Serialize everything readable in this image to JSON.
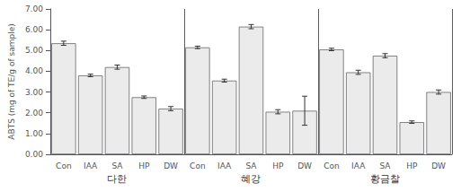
{
  "chart_data": {
    "type": "bar",
    "groups": [
      "다한",
      "혜강",
      "황금찰"
    ],
    "categories": [
      "Con",
      "IAA",
      "SA",
      "HP",
      "DW"
    ],
    "values": [
      [
        5.35,
        3.8,
        4.2,
        2.75,
        2.2
      ],
      [
        5.15,
        3.55,
        6.15,
        2.05,
        2.1
      ],
      [
        5.05,
        3.95,
        4.75,
        1.55,
        3.0
      ]
    ],
    "errors": [
      [
        0.1,
        0.06,
        0.1,
        0.06,
        0.1
      ],
      [
        0.06,
        0.07,
        0.1,
        0.1,
        0.7
      ],
      [
        0.06,
        0.1,
        0.1,
        0.06,
        0.1
      ]
    ],
    "ylabel": "ABTS (mg of TE/g of sample)",
    "ylim": [
      0.0,
      7.0
    ],
    "yticks": [
      {
        "value": 0,
        "label": "0.00"
      },
      {
        "value": 1,
        "label": "1.00"
      },
      {
        "value": 2,
        "label": "2.00"
      },
      {
        "value": 3,
        "label": "3.00"
      },
      {
        "value": 4,
        "label": "4.00"
      },
      {
        "value": 5,
        "label": "5.00"
      },
      {
        "value": 6,
        "label": "6.00"
      },
      {
        "value": 7,
        "label": "7.00"
      }
    ],
    "color": "#ebebeb",
    "grid": false
  }
}
